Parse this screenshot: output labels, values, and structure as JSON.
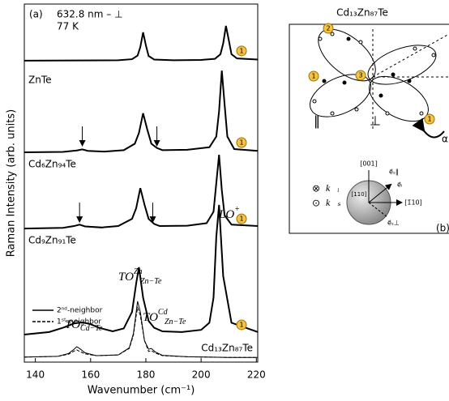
{
  "chart_data": {
    "type": "line",
    "panel_label": "(a)",
    "laser": "632.8 nm – ⊥",
    "temperature": "77 K",
    "xlabel": "Wavenumber (cm⁻¹)",
    "ylabel": "Raman Intensity  (arb. units)",
    "xlim": [
      136,
      220.5
    ],
    "ylim": [
      0,
      100
    ],
    "xticks": [
      140,
      160,
      180,
      200,
      220
    ],
    "yticks": [],
    "series": [
      {
        "name": "ZnTe",
        "color": "#000000",
        "style": "solid",
        "marker": "1",
        "x": [
          136,
          170,
          175,
          177,
          178,
          179,
          180,
          181,
          183,
          190,
          200,
          205,
          207,
          208,
          209,
          210,
          211,
          213,
          220.5
        ],
        "values": [
          84.2,
          84.3,
          84.6,
          85.6,
          88,
          92.1,
          88.5,
          85.5,
          84.5,
          84.3,
          84.4,
          84.7,
          86,
          89,
          93.9,
          90,
          86,
          84.8,
          84.5
        ]
      },
      {
        "name": "Cd₆Zn₉₄Te",
        "color": "#000000",
        "style": "solid",
        "marker": "1",
        "arrows_x": [
          157,
          184
        ],
        "x": [
          136,
          150,
          155,
          157,
          159,
          165,
          172,
          176,
          177.5,
          179,
          180.5,
          182,
          184,
          186,
          195,
          203,
          205.5,
          206.5,
          207.5,
          208.5,
          209.5,
          212,
          220.5
        ],
        "values": [
          58.6,
          58.7,
          59.1,
          59.4,
          59.0,
          58.8,
          59.2,
          61,
          64,
          69.5,
          65,
          61,
          59.8,
          59.2,
          59.3,
          60,
          63,
          70,
          81.4,
          72,
          63,
          59.5,
          59
        ]
      },
      {
        "name": "Cd₉Zn₉₁Te",
        "color": "#000000",
        "style": "solid",
        "marker": "1",
        "arrows_x": [
          156,
          182.5
        ],
        "x": [
          136,
          150,
          154,
          156,
          158,
          164,
          170,
          175,
          176.5,
          178,
          179.5,
          181,
          183,
          185,
          195,
          202,
          204.5,
          205.5,
          206.5,
          207.5,
          208.5,
          211,
          220.5
        ],
        "values": [
          37.3,
          37.5,
          38,
          38.4,
          37.9,
          37.6,
          38,
          40,
          43,
          48.6,
          44,
          40,
          38.6,
          38,
          38.1,
          38.8,
          42,
          50,
          57.9,
          48,
          41,
          38.4,
          38
        ]
      },
      {
        "name": "Cd₁₃Zn₈₇Te",
        "color": "#000000",
        "style": "solid",
        "marker": "1",
        "x": [
          136,
          145,
          150,
          154,
          157,
          160,
          163,
          168,
          172,
          175,
          176.5,
          177.5,
          179,
          181,
          183,
          186,
          193,
          200,
          203,
          204.5,
          205.5,
          206.5,
          208,
          211,
          220.5
        ],
        "values": [
          7.7,
          8.4,
          9.6,
          10.8,
          11.1,
          10.6,
          9.6,
          8.6,
          9.4,
          14,
          22,
          26.5,
          18,
          11.5,
          9.6,
          8.6,
          8.4,
          9,
          11,
          18,
          35,
          43.9,
          24,
          11,
          8.4
        ]
      },
      {
        "name": "2ⁿᵈ-neighbor",
        "color": "#000000",
        "style": "thin",
        "x": [
          136,
          148,
          152,
          154,
          155,
          156,
          158,
          162,
          170,
          174,
          175.5,
          176.5,
          177,
          178,
          179.5,
          181,
          182,
          183.5,
          186,
          195,
          210,
          220.5
        ],
        "values": [
          1.4,
          1.6,
          2.4,
          3.6,
          4.3,
          3.8,
          2.6,
          1.8,
          2,
          4,
          8,
          14,
          17,
          14,
          6,
          3.6,
          3.8,
          2.8,
          1.9,
          1.5,
          1.3,
          1.3
        ]
      },
      {
        "name": "1ˢᵗ-neighbor",
        "color": "#000000",
        "style": "dashed",
        "x": [
          136,
          148,
          152,
          154,
          155,
          156,
          158,
          162,
          170,
          174,
          175.5,
          176.5,
          177,
          178,
          179.5,
          181,
          182,
          183.5,
          186,
          195,
          210,
          220.5
        ],
        "values": [
          1.4,
          1.6,
          2.2,
          3.1,
          3.4,
          3,
          2.3,
          1.8,
          2,
          3.8,
          7.5,
          13,
          15.2,
          13,
          6,
          3,
          3.2,
          2.5,
          1.8,
          1.5,
          1.3,
          1.3
        ]
      }
    ],
    "annotations": {
      "to_cdte": {
        "main": "TO",
        "sub": "Cd−Te"
      },
      "to_zn": {
        "main": "TO",
        "sup": "Zn",
        "sub": "Zn−Te"
      },
      "to_cd": {
        "main": "TO",
        "sup": "Cd",
        "sub": "Zn−Te"
      },
      "lo": {
        "main": "LO",
        "sup": "+"
      }
    }
  },
  "panel_b": {
    "title": "Cd₁₃Zn₈₇Te",
    "markers": [
      "2",
      "1",
      "3",
      "1"
    ],
    "parallel": "‖",
    "perp": "⊥",
    "angle": "α",
    "label": "(b)",
    "dir_001": "[001]",
    "dir_110": "[110]",
    "dir_m110": "[1̄10]",
    "otimes": "⊗",
    "odot": "⊙",
    "k_i": "k⃗ᵢ",
    "k_s": "k⃗ₛ",
    "e_i": "e⃗ᵢ",
    "e_s_par": "e⃗ₛ‖",
    "e_s_perp": "e⃗ₛ⊥"
  }
}
